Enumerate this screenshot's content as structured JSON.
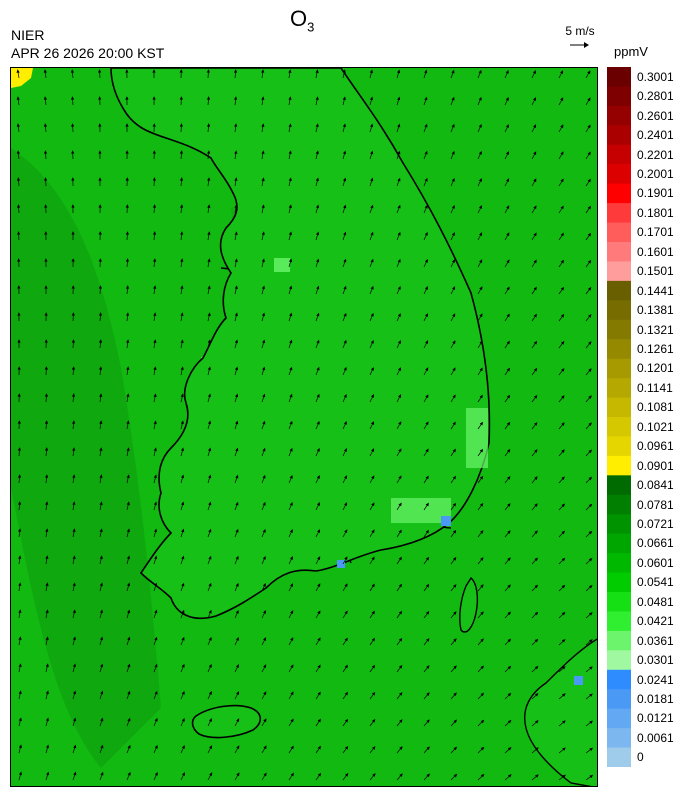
{
  "header": {
    "pollutant": "O",
    "pollutant_sub": "3",
    "agency": "NIER",
    "timestamp": "APR 26 2026 20:00 KST",
    "wind_reference": "5 m/s",
    "unit": "ppmV"
  },
  "legend": {
    "labels": [
      "0.3001",
      "0.2801",
      "0.2601",
      "0.2401",
      "0.2201",
      "0.2001",
      "0.1901",
      "0.1801",
      "0.1701",
      "0.1601",
      "0.1501",
      "0.1441",
      "0.1381",
      "0.1321",
      "0.1261",
      "0.1201",
      "0.1141",
      "0.1081",
      "0.1021",
      "0.0961",
      "0.0901",
      "0.0841",
      "0.0781",
      "0.0721",
      "0.0661",
      "0.0601",
      "0.0541",
      "0.0481",
      "0.0421",
      "0.0361",
      "0.0301",
      "0.0241",
      "0.0181",
      "0.0121",
      "0.0061",
      "0"
    ],
    "colors": [
      "#6b0000",
      "#7e0000",
      "#950000",
      "#aa0000",
      "#c60000",
      "#dd0000",
      "#ff0000",
      "#ff3a3a",
      "#ff5c5c",
      "#ff7b7b",
      "#ff9c9c",
      "#6a5f00",
      "#766c00",
      "#857a00",
      "#958900",
      "#a69a00",
      "#b5a800",
      "#c6b800",
      "#d6c800",
      "#e6d600",
      "#ffee00",
      "#006b00",
      "#007f00",
      "#009300",
      "#00a600",
      "#00b800",
      "#00cc00",
      "#14e014",
      "#30ef30",
      "#6cf56c",
      "#a0f9a0",
      "#2f8cff",
      "#4a9af5",
      "#62a8f2",
      "#7db7ef",
      "#9fcceb"
    ]
  },
  "map": {
    "sea_color": "#11b911",
    "land_color": "#17c017",
    "inner_sea_color": "#0e9c0e",
    "coast_color": "#000000",
    "border_color": "#d8ffd8"
  }
}
